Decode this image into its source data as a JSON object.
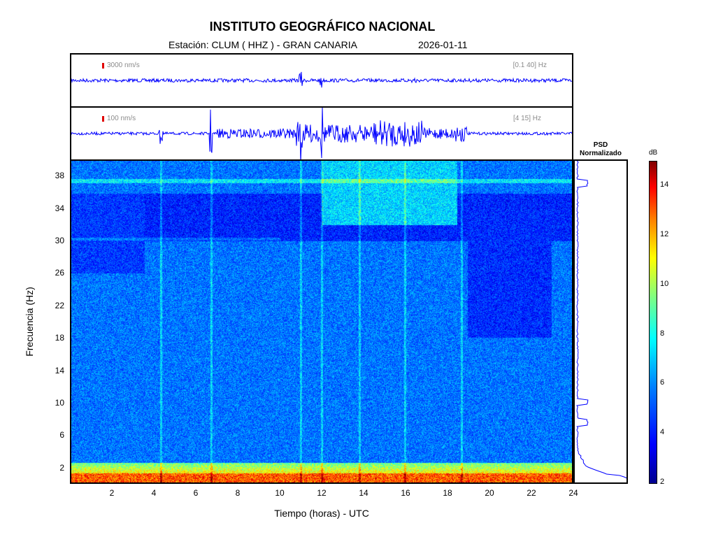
{
  "header": {
    "title": "INSTITUTO GEOGRÁFICO NACIONAL",
    "station": "Estación:  CLUM ( HHZ ) - GRAN CANARIA",
    "date": "2026-01-11"
  },
  "trace_top": {
    "scale": "3000 nm/s",
    "band": "[0.1 40] Hz",
    "color": "#0000ff"
  },
  "trace_bottom": {
    "scale": "100 nm/s",
    "band": "[4 15] Hz",
    "color": "#0000ff"
  },
  "psd": {
    "title_line1": "PSD",
    "title_line2": "Normalizado"
  },
  "colorbar": {
    "unit": "dB",
    "ticks": [
      "14",
      "12",
      "10",
      "8",
      "6",
      "4",
      "2"
    ],
    "range": [
      2,
      15
    ]
  },
  "chart_data": {
    "type": "heatmap",
    "xlabel": "Tiempo (horas) - UTC",
    "ylabel": "Frecuencia  (Hz)",
    "xlim": [
      0,
      24
    ],
    "ylim": [
      0,
      40
    ],
    "xticks": [
      "2",
      "4",
      "6",
      "8",
      "10",
      "12",
      "14",
      "16",
      "18",
      "20",
      "22",
      "24"
    ],
    "yticks": [
      "38",
      "34",
      "30",
      "26",
      "22",
      "18",
      "14",
      "10",
      "6",
      "2"
    ],
    "colormap": "jet",
    "vertical_event_lines_hours": [
      4.3,
      6.7,
      11.0,
      12.0,
      13.8,
      16.0,
      18.7
    ],
    "persistent_frequency_lines_hz": [
      37.5,
      30.3
    ],
    "psd_peaks_hz": [
      37.2,
      10.0,
      7.5,
      0.5
    ]
  }
}
